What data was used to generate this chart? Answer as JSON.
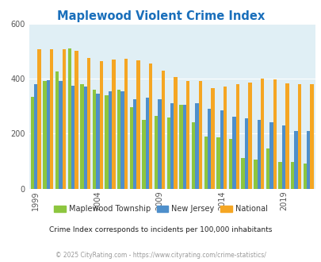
{
  "title": "Maplewood Violent Crime Index",
  "title_color": "#1a6fbb",
  "subtitle": "Crime Index corresponds to incidents per 100,000 inhabitants",
  "footer": "© 2025 CityRating.com - https://www.cityrating.com/crime-statistics/",
  "years": [
    1999,
    2000,
    2001,
    2002,
    2003,
    2004,
    2005,
    2006,
    2007,
    2008,
    2009,
    2010,
    2011,
    2012,
    2013,
    2014,
    2015,
    2016,
    2017,
    2018,
    2019,
    2020,
    2021
  ],
  "maplewood": [
    335,
    390,
    425,
    510,
    380,
    360,
    340,
    360,
    295,
    250,
    265,
    260,
    305,
    240,
    190,
    185,
    180,
    110,
    105,
    145,
    97,
    97,
    90
  ],
  "new_jersey": [
    380,
    395,
    390,
    375,
    370,
    345,
    355,
    355,
    325,
    330,
    325,
    310,
    305,
    310,
    290,
    285,
    262,
    255,
    250,
    240,
    230,
    210,
    210
  ],
  "national": [
    507,
    507,
    507,
    500,
    475,
    463,
    470,
    473,
    465,
    455,
    430,
    405,
    390,
    390,
    365,
    372,
    380,
    385,
    400,
    397,
    384,
    380,
    379
  ],
  "maplewood_color": "#8dc63f",
  "nj_color": "#4e8fcb",
  "national_color": "#f5a623",
  "bg_color": "#e0eff5",
  "ylim": [
    0,
    600
  ],
  "yticks": [
    0,
    200,
    400,
    600
  ],
  "bar_width": 0.28,
  "legend_labels": [
    "Maplewood Township",
    "New Jersey",
    "National"
  ],
  "tick_years": [
    1999,
    2004,
    2009,
    2014,
    2019
  ]
}
